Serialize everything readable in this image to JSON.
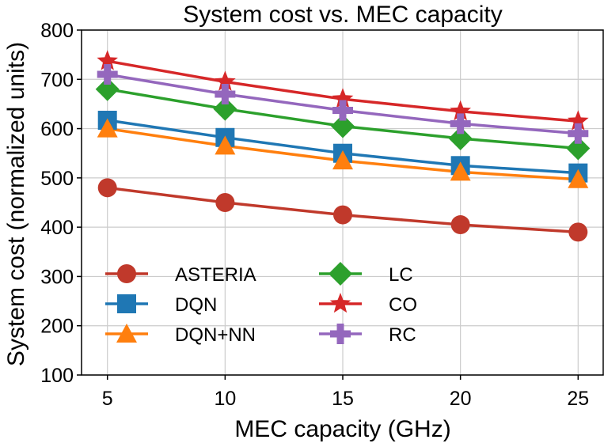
{
  "chart_data": {
    "type": "line",
    "title": "System cost vs. MEC capacity",
    "xlabel": "MEC capacity (GHz)",
    "ylabel": "System cost (normalized units)",
    "x": [
      5,
      10,
      15,
      20,
      25
    ],
    "xlim": [
      3.9,
      26.1
    ],
    "ylim": [
      100,
      800
    ],
    "xticks": [
      5,
      10,
      15,
      20,
      25
    ],
    "yticks": [
      100,
      200,
      300,
      400,
      500,
      600,
      700,
      800
    ],
    "grid": true,
    "legend_position": "lower-left",
    "legend_columns": 2,
    "series": [
      {
        "name": "ASTERIA",
        "values": [
          480,
          450,
          425,
          405,
          390
        ],
        "color": "#c0392b",
        "marker": "circle"
      },
      {
        "name": "DQN",
        "values": [
          617,
          582,
          550,
          525,
          510
        ],
        "color": "#1f77b4",
        "marker": "square"
      },
      {
        "name": "DQN+NN",
        "values": [
          600,
          565,
          535,
          512,
          497
        ],
        "color": "#ff7f0e",
        "marker": "triangle"
      },
      {
        "name": "LC",
        "values": [
          680,
          640,
          605,
          580,
          560
        ],
        "color": "#2ca02c",
        "marker": "diamond"
      },
      {
        "name": "CO",
        "values": [
          737,
          695,
          660,
          635,
          615
        ],
        "color": "#d62728",
        "marker": "star"
      },
      {
        "name": "RC",
        "values": [
          710,
          670,
          637,
          610,
          590
        ],
        "color": "#9467bd",
        "marker": "plus"
      }
    ]
  }
}
